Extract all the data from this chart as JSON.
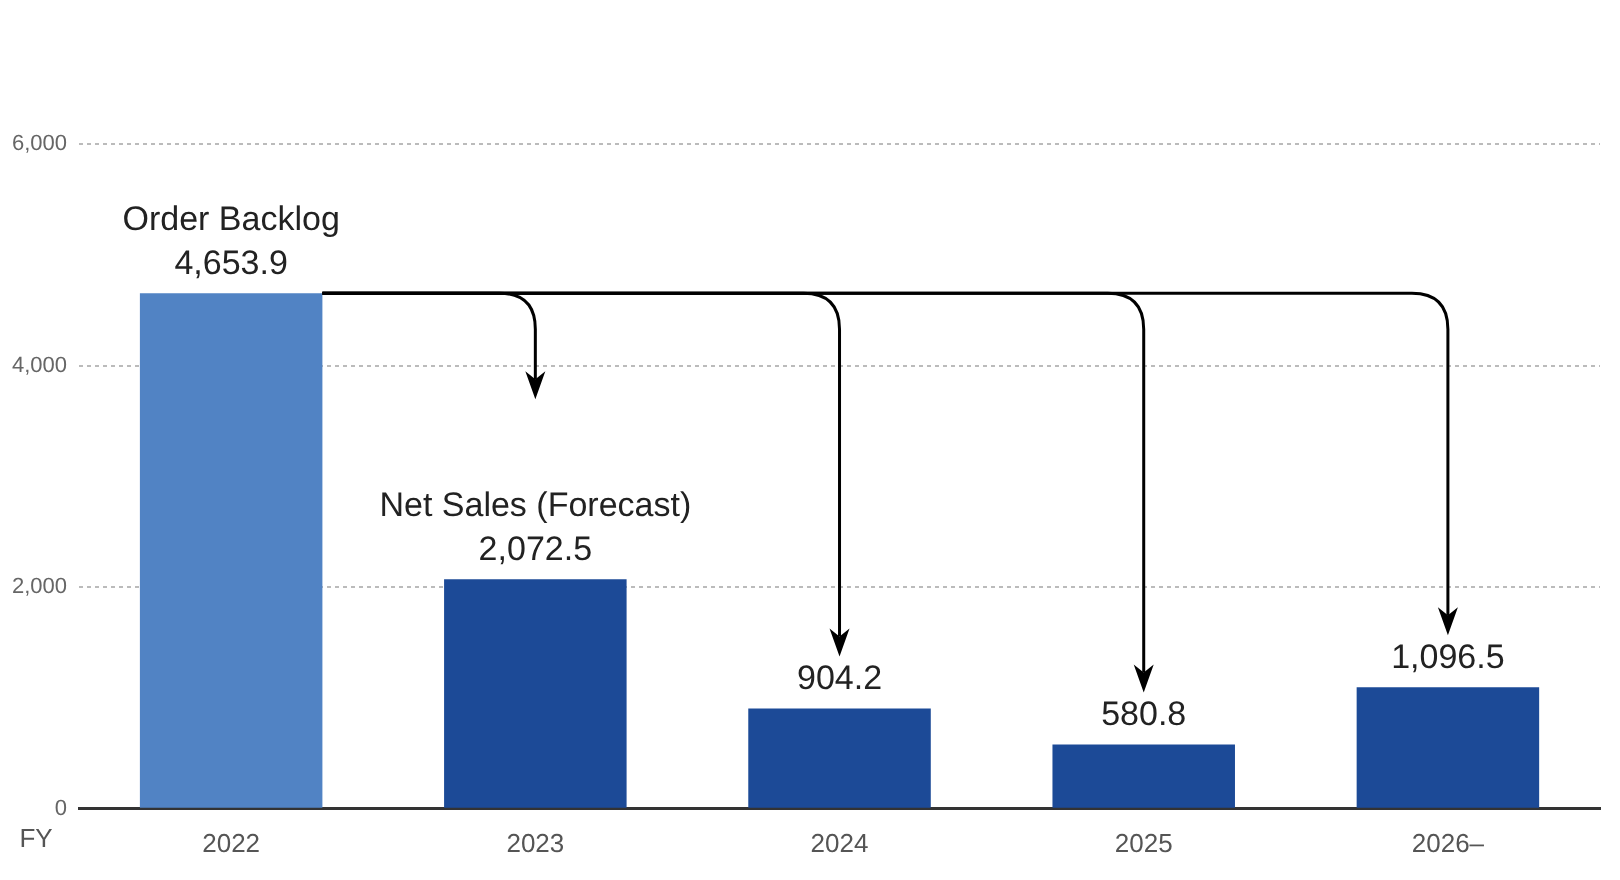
{
  "chart_data": {
    "type": "bar",
    "xlabel": "FY",
    "categories": [
      "2022",
      "2023",
      "2024",
      "2025",
      "2026–"
    ],
    "values": [
      4653.9,
      2072.5,
      904.2,
      580.8,
      1096.5
    ],
    "colors": [
      "#5183c4",
      "#1c4a97",
      "#1c4a97",
      "#1c4a97",
      "#1c4a97"
    ],
    "value_labels": [
      "4,653.9",
      "2,072.5",
      "904.2",
      "580.8",
      "1,096.5"
    ],
    "annotations": [
      {
        "text": "Order Backlog",
        "x": "2022",
        "y": 4653.9
      },
      {
        "text": "Net Sales (Forecast)",
        "x": "2023",
        "y": 2072.5
      }
    ],
    "ylim": [
      0,
      6000
    ],
    "yticks": [
      {
        "value": 0,
        "label": "0"
      },
      {
        "value": 2000,
        "label": "2,000"
      },
      {
        "value": 4000,
        "label": "4,000"
      },
      {
        "value": 6000,
        "label": "6,000"
      }
    ],
    "grid": "y",
    "legend": false
  }
}
